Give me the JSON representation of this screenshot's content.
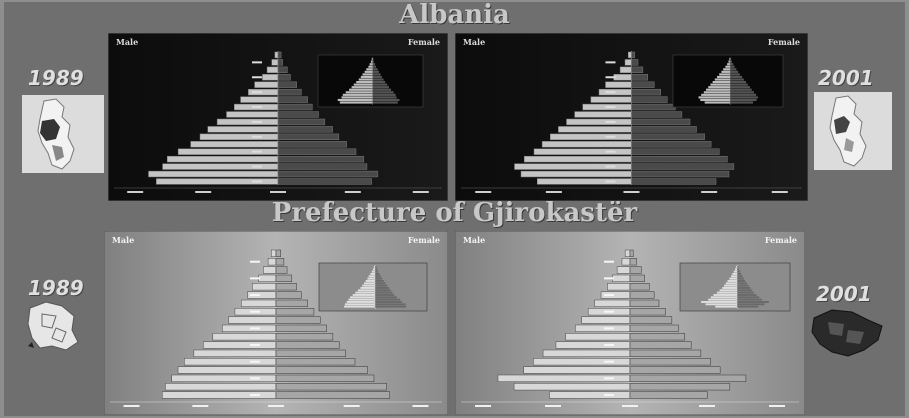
{
  "titles": {
    "top": "Albania",
    "bottom": "Prefecture of Gjirokastër"
  },
  "years": {
    "left": "1989",
    "right": "2001"
  },
  "panel_labels": {
    "male": "Male",
    "female": "Female"
  },
  "icons": {
    "map_albania": "albania-map-icon",
    "map_prefecture": "prefecture-map-icon"
  },
  "colors": {
    "dark_bg": "#101010",
    "light_bg": "#9a9a9a",
    "male_bar": "#b8b8b8",
    "female_bar": "#5a5a5a"
  },
  "chart_data": [
    {
      "type": "bar",
      "region": "Albania",
      "year": "1989",
      "orientation": "horizontal-pyramid",
      "male": [
        0.78,
        0.83,
        0.74,
        0.71,
        0.64,
        0.56,
        0.5,
        0.45,
        0.39,
        0.33,
        0.28,
        0.24,
        0.19,
        0.15,
        0.1,
        0.07,
        0.04,
        0.02
      ],
      "female": [
        0.6,
        0.64,
        0.57,
        0.55,
        0.5,
        0.44,
        0.39,
        0.35,
        0.3,
        0.26,
        0.22,
        0.19,
        0.15,
        0.12,
        0.08,
        0.06,
        0.03,
        0.02
      ]
    },
    {
      "type": "bar",
      "region": "Albania",
      "year": "2001",
      "orientation": "horizontal-pyramid",
      "male": [
        0.58,
        0.68,
        0.72,
        0.66,
        0.6,
        0.55,
        0.5,
        0.45,
        0.4,
        0.35,
        0.3,
        0.25,
        0.2,
        0.16,
        0.11,
        0.07,
        0.04,
        0.02
      ],
      "female": [
        0.52,
        0.6,
        0.63,
        0.59,
        0.54,
        0.49,
        0.45,
        0.4,
        0.36,
        0.31,
        0.27,
        0.22,
        0.18,
        0.14,
        0.1,
        0.07,
        0.04,
        0.02
      ]
    },
    {
      "type": "bar",
      "region": "Prefecture of Gjirokastër",
      "year": "1989",
      "orientation": "horizontal-pyramid",
      "male": [
        0.72,
        0.7,
        0.66,
        0.62,
        0.58,
        0.52,
        0.46,
        0.4,
        0.34,
        0.3,
        0.26,
        0.22,
        0.18,
        0.15,
        0.11,
        0.08,
        0.05,
        0.03
      ],
      "female": [
        0.72,
        0.7,
        0.62,
        0.58,
        0.5,
        0.44,
        0.4,
        0.36,
        0.32,
        0.28,
        0.24,
        0.2,
        0.16,
        0.13,
        0.1,
        0.07,
        0.05,
        0.03
      ]
    },
    {
      "type": "bar",
      "region": "Prefecture of Gjirokastër",
      "year": "2001",
      "orientation": "horizontal-pyramid",
      "male": [
        0.5,
        0.72,
        0.82,
        0.66,
        0.6,
        0.54,
        0.46,
        0.4,
        0.34,
        0.3,
        0.26,
        0.22,
        0.18,
        0.14,
        0.11,
        0.08,
        0.05,
        0.03
      ],
      "female": [
        0.48,
        0.62,
        0.72,
        0.56,
        0.5,
        0.44,
        0.38,
        0.34,
        0.3,
        0.26,
        0.22,
        0.18,
        0.15,
        0.12,
        0.09,
        0.07,
        0.04,
        0.02
      ]
    }
  ]
}
